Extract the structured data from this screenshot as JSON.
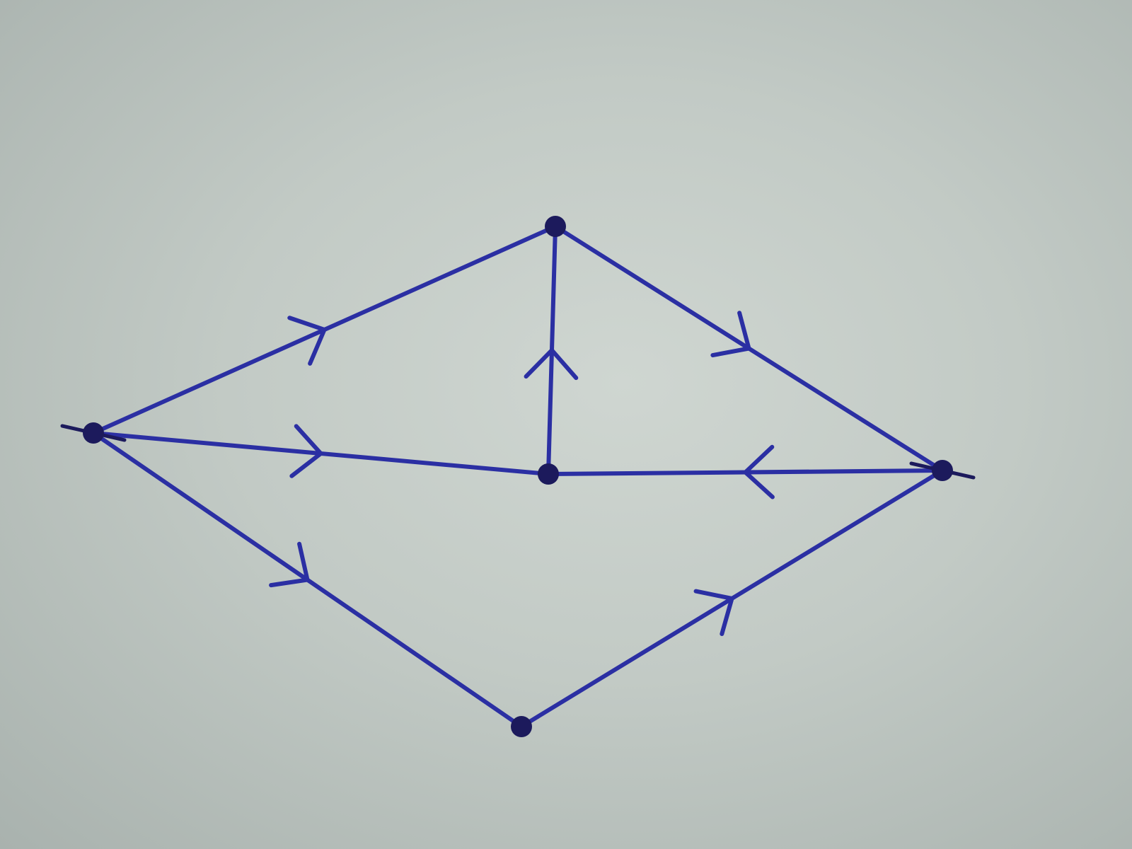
{
  "diagram": {
    "type": "directed-graph",
    "ink_color": "#2b2fa3",
    "vertex_color": "#1c1a5c",
    "paper_color": "#c4ccc7",
    "vertices": [
      {
        "id": "left"
      },
      {
        "id": "top"
      },
      {
        "id": "center"
      },
      {
        "id": "right"
      },
      {
        "id": "bottom"
      }
    ],
    "edges": [
      {
        "id": "left-top",
        "from": "left",
        "to": "top"
      },
      {
        "id": "left-center",
        "from": "left",
        "to": "center"
      },
      {
        "id": "left-bottom",
        "from": "left",
        "to": "bottom"
      },
      {
        "id": "center-top",
        "from": "center",
        "to": "top"
      },
      {
        "id": "top-right",
        "from": "top",
        "to": "right"
      },
      {
        "id": "right-center",
        "from": "right",
        "to": "center"
      },
      {
        "id": "bottom-right",
        "from": "bottom",
        "to": "right"
      }
    ]
  }
}
